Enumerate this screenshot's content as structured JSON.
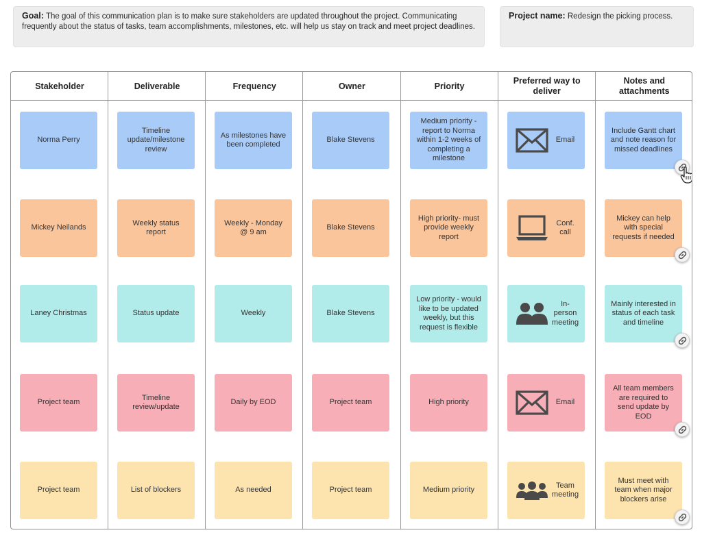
{
  "goal": {
    "label": "Goal:",
    "text": "The goal of this communication plan is to make sure stakeholders are updated throughout the project. Communicating frequently about the status of tasks, team accomplishments, milestones, etc. will help us stay on track and meet project deadlines."
  },
  "project": {
    "label": "Project name:",
    "text": "Redesign the picking process."
  },
  "columns": [
    "Stakeholder",
    "Deliverable",
    "Frequency",
    "Owner",
    "Priority",
    "Preferred way to deliver",
    "Notes and attachments"
  ],
  "colors": {
    "blue": "#a8cbf8",
    "orange": "#fbc59c",
    "teal": "#b1ebea",
    "pink": "#f8aeb7",
    "yellow": "#fde4ae"
  },
  "rows": [
    {
      "stakeholder": "Norma Perry",
      "deliverable": "Timeline update/milestone review",
      "frequency": "As milestones have been completed",
      "owner": "Blake Stevens",
      "priority": "Medium priority - report to Norma within 1-2 weeks of completing a milestone",
      "deliver": {
        "icon": "envelope-icon",
        "text": "Email"
      },
      "notes": "Include Gantt chart and note reason for missed deadlines"
    },
    {
      "stakeholder": "Mickey Neilands",
      "deliverable": "Weekly status report",
      "frequency": "Weekly - Monday @ 9 am",
      "owner": "Blake Stevens",
      "priority": "High priority- must provide weekly report",
      "deliver": {
        "icon": "laptop-icon",
        "text": "Conf. call"
      },
      "notes": "Mickey can help with special requests if needed"
    },
    {
      "stakeholder": "Laney Christmas",
      "deliverable": "Status update",
      "frequency": "Weekly",
      "owner": "Blake Stevens",
      "priority": "Low priority - would like to be updated weekly, but this request is flexible",
      "deliver": {
        "icon": "two-people-icon",
        "text": "In-person meeting"
      },
      "notes": "Mainly interested in status of each task and timeline"
    },
    {
      "stakeholder": "Project team",
      "deliverable": "Timeline review/update",
      "frequency": "Daily by EOD",
      "owner": "Project team",
      "priority": "High priority",
      "deliver": {
        "icon": "envelope-icon",
        "text": "Email"
      },
      "notes": "All team members are required to send update by EOD"
    },
    {
      "stakeholder": "Project team",
      "deliverable": "List of blockers",
      "frequency": "As needed",
      "owner": "Project team",
      "priority": "Medium priority",
      "deliver": {
        "icon": "group-icon",
        "text": "Team meeting"
      },
      "notes": "Must meet with team when major blockers arise"
    }
  ]
}
